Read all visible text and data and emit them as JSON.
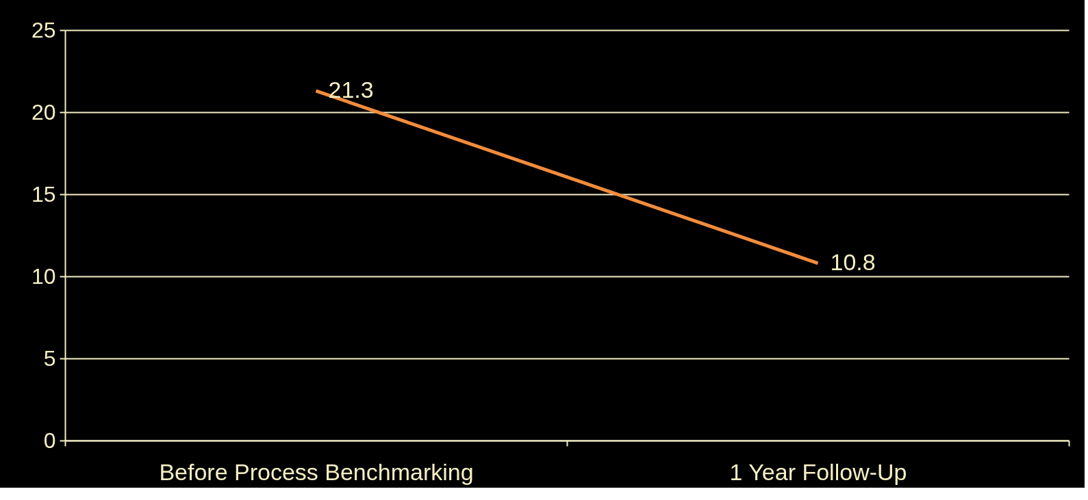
{
  "chart_data": {
    "type": "line",
    "categories": [
      "Before Process Benchmarking",
      "1 Year Follow-Up"
    ],
    "series": [
      {
        "color": "#f28c3c",
        "values": [
          21.3,
          10.8
        ]
      }
    ],
    "ylim": [
      0,
      25
    ],
    "yticks": [
      0,
      5,
      10,
      15,
      20,
      25
    ],
    "grid": "y",
    "data_labels": true,
    "marker": "none",
    "line_style": "solid"
  }
}
